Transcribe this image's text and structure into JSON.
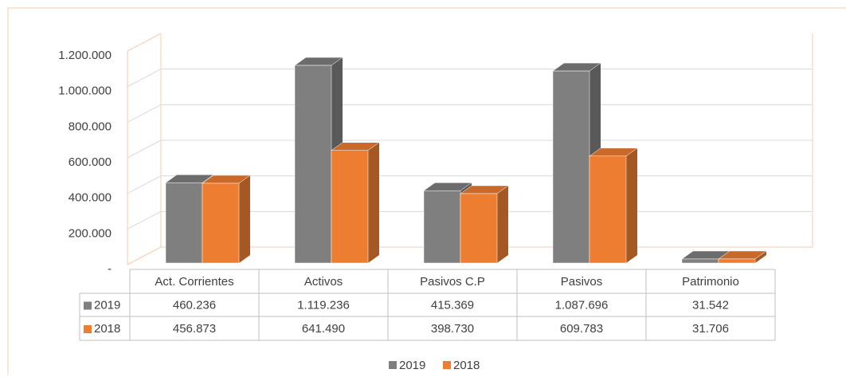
{
  "chart_data": {
    "type": "bar",
    "categories": [
      "Act. Corrientes",
      "Activos",
      "Pasivos C.P",
      "Pasivos",
      "Patrimonio"
    ],
    "series": [
      {
        "name": "2019",
        "color": "#7f7f7f",
        "values": [
          460236,
          1119236,
          415369,
          1087696,
          31542
        ],
        "value_labels": [
          "460.236",
          "1.119.236",
          "415.369",
          "1.087.696",
          "31.542"
        ]
      },
      {
        "name": "2018",
        "color": "#ed7d31",
        "values": [
          456873,
          641490,
          398730,
          609783,
          31706
        ],
        "value_labels": [
          "456.873",
          "641.490",
          "398.730",
          "609.783",
          "31.706"
        ]
      }
    ],
    "ylim": [
      0,
      1200000
    ],
    "yticks": [
      {
        "value": 0,
        "label": "-"
      },
      {
        "value": 200000,
        "label": "200.000"
      },
      {
        "value": 400000,
        "label": "400.000"
      },
      {
        "value": 600000,
        "label": "600.000"
      },
      {
        "value": 800000,
        "label": "800.000"
      },
      {
        "value": 1000000,
        "label": "1.000.000"
      },
      {
        "value": 1200000,
        "label": "1.200.000"
      }
    ],
    "grid": true,
    "legend": "bottom"
  }
}
